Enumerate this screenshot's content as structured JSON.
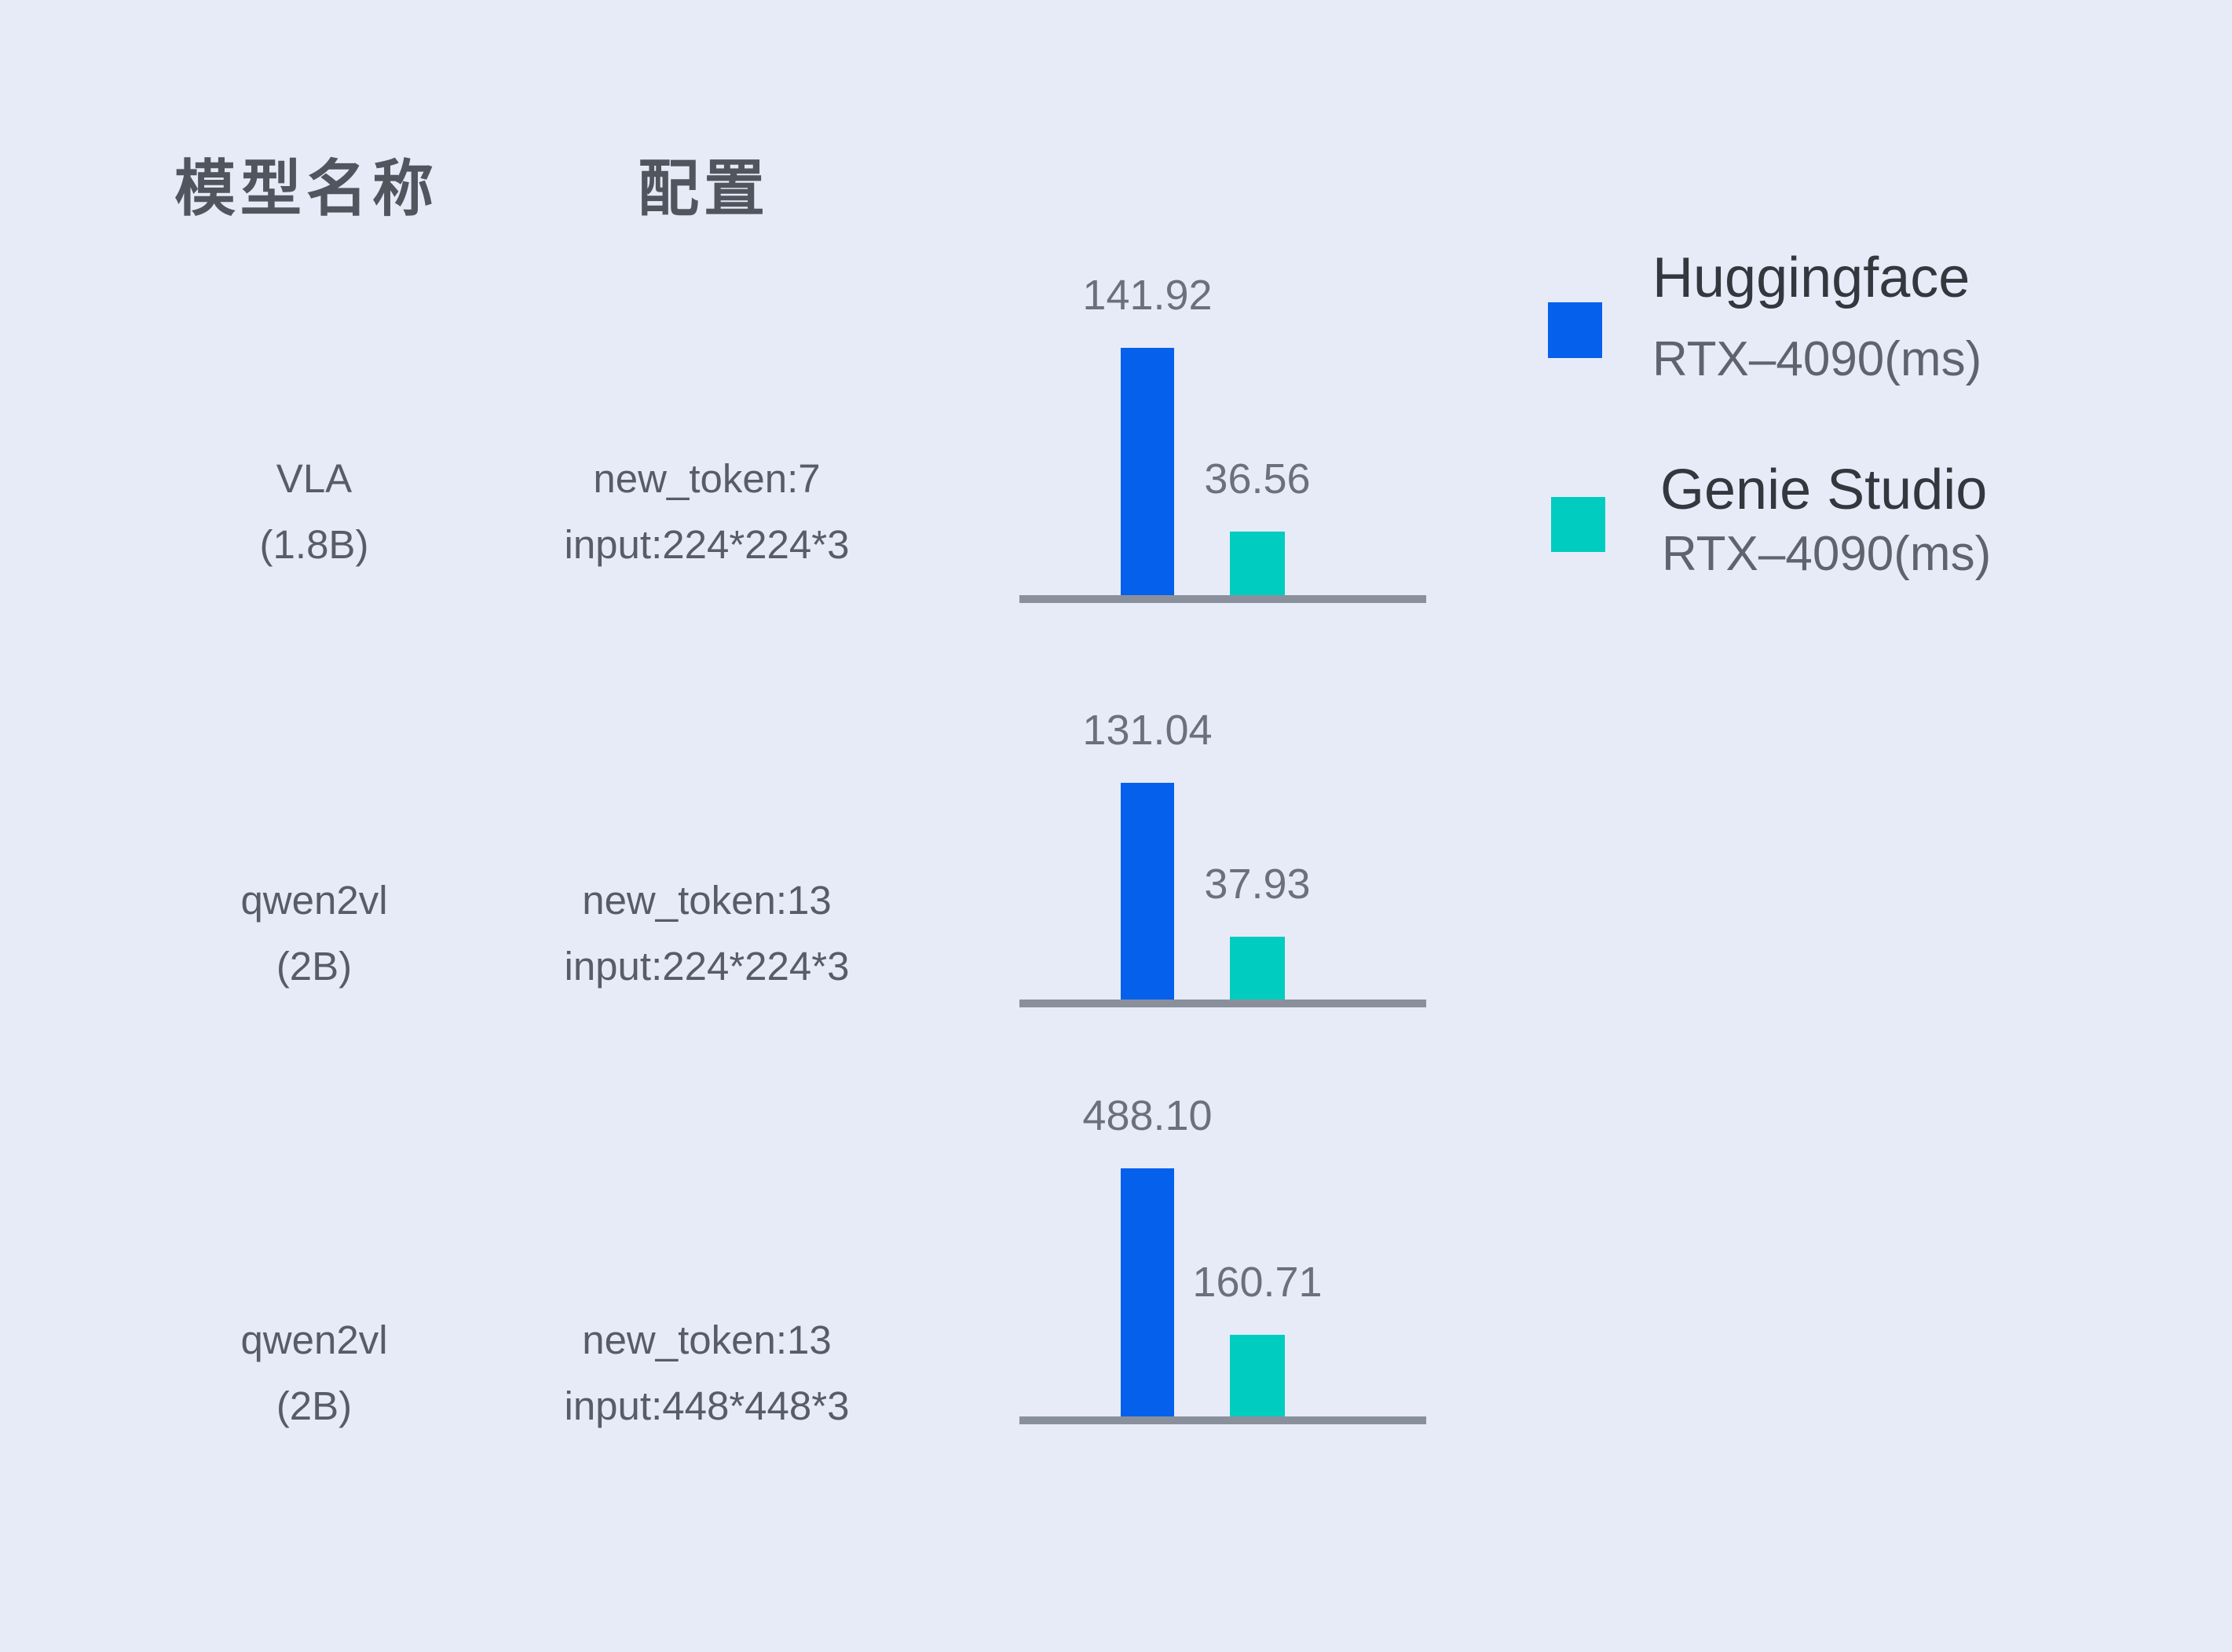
{
  "page": {
    "background": "#E7EBF8",
    "axis_color": "#8A909B"
  },
  "header": {
    "col_model": "模型名称",
    "col_config": "配置"
  },
  "legend": [
    {
      "name": "Huggingface",
      "device": "RTX–4090(ms)",
      "color": "#0560EC"
    },
    {
      "name": "Genie Studio",
      "device": "RTX–4090(ms)",
      "color": "#00CCC0"
    }
  ],
  "chart_data": {
    "type": "bar",
    "title": "",
    "unit": "ms",
    "legend_position": "right",
    "grid": false,
    "series_names": [
      "Huggingface RTX-4090(ms)",
      "Genie Studio RTX-4090(ms)"
    ],
    "series": [
      {
        "name": "Huggingface RTX-4090(ms)",
        "values": [
          141.92,
          131.04,
          488.1
        ]
      },
      {
        "name": "Genie Studio RTX-4090(ms)",
        "values": [
          36.56,
          37.93,
          160.71
        ]
      }
    ],
    "rows": [
      {
        "model_line1": "VLA",
        "model_line2": "(1.8B)",
        "config_line1": "new_token:7",
        "config_line2": "input:224*224*3",
        "huggingface_ms": 141.92,
        "genie_studio_ms": 36.56,
        "value_labels": [
          "141.92",
          "36.56"
        ]
      },
      {
        "model_line1": "qwen2vl",
        "model_line2": "(2B)",
        "config_line1": "new_token:13",
        "config_line2": "input:224*224*3",
        "huggingface_ms": 131.04,
        "genie_studio_ms": 37.93,
        "value_labels": [
          "131.04",
          "37.93"
        ]
      },
      {
        "model_line1": "qwen2vl",
        "model_line2": "(2B)",
        "config_line1": "new_token:13",
        "config_line2": "input:448*448*3",
        "huggingface_ms": 488.1,
        "genie_studio_ms": 160.71,
        "value_labels": [
          "488.10",
          "160.71"
        ]
      }
    ]
  }
}
